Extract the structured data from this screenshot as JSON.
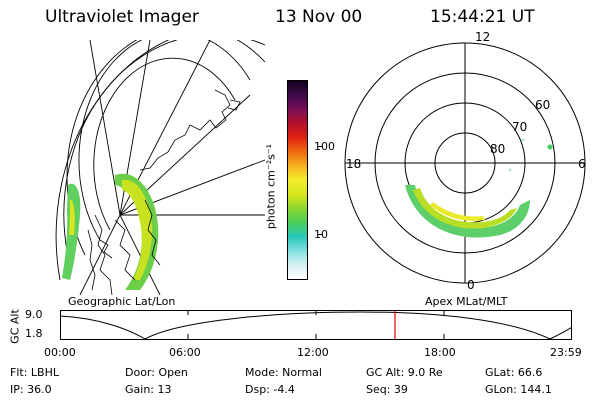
{
  "header": {
    "instrument": "Ultraviolet Imager",
    "date": "13 Nov 00",
    "time": "15:44:21 UT"
  },
  "panels": {
    "left_label": "Geographic Lat/Lon",
    "right_label": "Apex MLat/MLT"
  },
  "colorbar": {
    "unit_label": "photon cm⁻²s⁻¹",
    "ticks": [
      "100",
      "10"
    ],
    "scale": "log",
    "colors": [
      "#ffffff",
      "#d8f0f2",
      "#7fe0e0",
      "#29c7b8",
      "#4ccc5a",
      "#8ed82f",
      "#d9e61d",
      "#f3ee2c",
      "#f7b11c",
      "#ef6a0f",
      "#df2012",
      "#b40f2b",
      "#7a0f57",
      "#3c0a4a",
      "#140020"
    ]
  },
  "polar_plot": {
    "mlt_labels": [
      "12",
      "18",
      "6",
      "0"
    ],
    "mlat_labels": [
      "60",
      "70",
      "80"
    ]
  },
  "altitude_plot": {
    "ylabel": "GC Alt",
    "y_ticks": [
      "9.0",
      "1.8"
    ],
    "x_ticks": [
      "00:00",
      "06:00",
      "12:00",
      "18:00",
      "23:59"
    ],
    "current_time_marker": "15:44",
    "marker_color": "#e00000"
  },
  "info": {
    "row1": {
      "filter": "Flt: LBHL",
      "door": "Door: Open",
      "mode": "Mode: Normal",
      "gc_alt": "GC Alt: 9.0 Re",
      "glat": "GLat:   66.6"
    },
    "row2": {
      "ip": "IP: 36.0",
      "gain": "Gain: 13",
      "dsp": "Dsp:    -4.4",
      "seq": "Seq: 39",
      "glon": "GLon: 144.1"
    }
  }
}
